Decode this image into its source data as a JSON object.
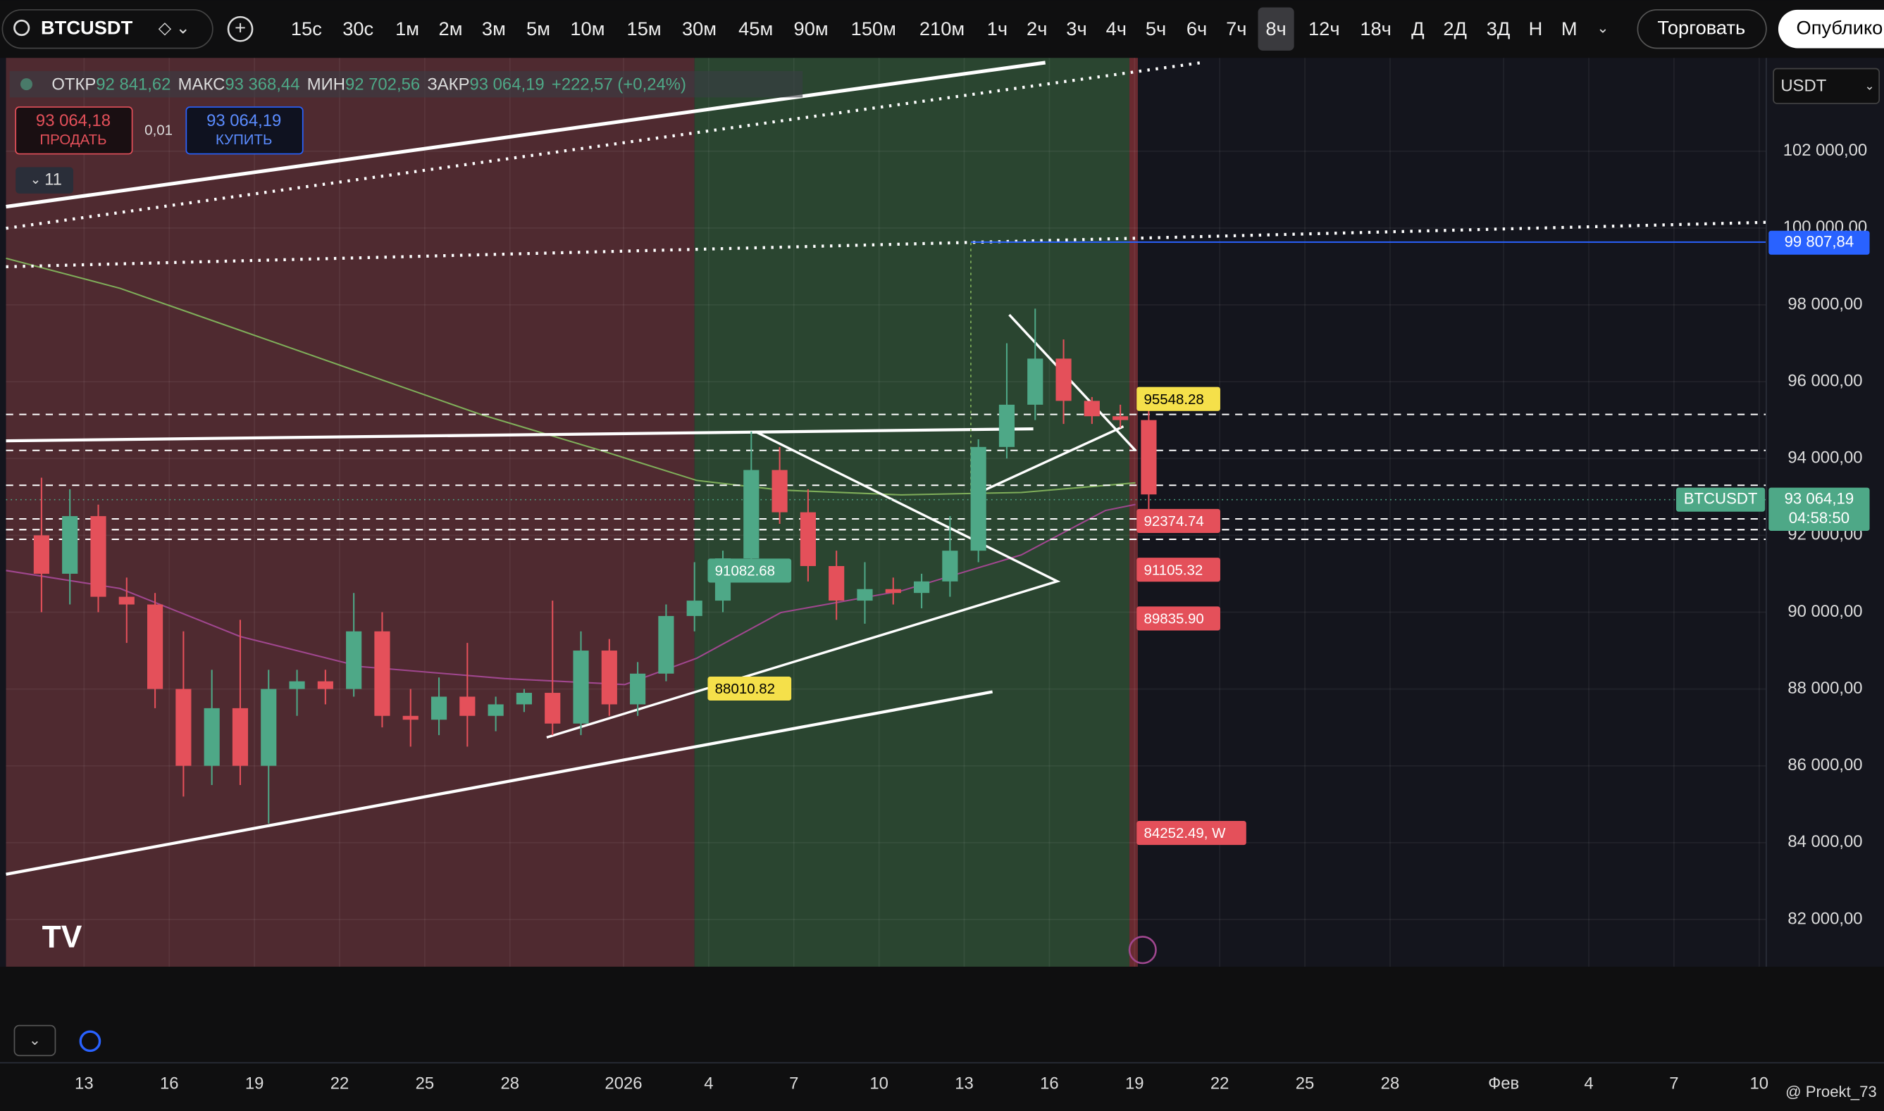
{
  "ui": {
    "symbol": "BTCUSDT",
    "timeframes": [
      "15с",
      "30с",
      "1м",
      "2м",
      "3м",
      "5м",
      "10м",
      "15м",
      "30м",
      "45м",
      "90м",
      "150м",
      "210м",
      "1ч",
      "2ч",
      "3ч",
      "4ч",
      "5ч",
      "6ч",
      "7ч",
      "8ч",
      "12ч",
      "18ч",
      "Д",
      "2Д",
      "3Д",
      "Н",
      "М"
    ],
    "active_timeframe": "8ч",
    "trade_button": "Торговать",
    "publish_button": "Опубликовать",
    "legend": {
      "open_label": "ОТКР",
      "open": "92 841,62",
      "high_label": "МАКС",
      "high": "93 368,44",
      "low_label": "МИН",
      "low": "92 702,56",
      "close_label": "ЗАКР",
      "close": "93 064,19",
      "change": "+222,57 (+0,24%)"
    },
    "sell_price": "93 064,18",
    "sell_label": "ПРОДАТЬ",
    "spread": "0,01",
    "buy_price": "93 064,19",
    "buy_label": "КУПИТЬ",
    "indicators_count": "11",
    "currency": "USDT",
    "price_tag_symbol": "BTCUSDT",
    "price_tag": "93 064,19",
    "countdown": "04:58:50",
    "alert_tag": "99 807,84",
    "watermark": "@ Proekt_73"
  },
  "chart_data": {
    "type": "candlestick",
    "x": [
      "2025-12-11",
      "2025-12-12",
      "2025-12-13",
      "2025-12-14",
      "2025-12-15",
      "2025-12-16",
      "2025-12-17",
      "2025-12-18",
      "2025-12-19",
      "2025-12-20",
      "2025-12-21",
      "2025-12-22",
      "2025-12-23",
      "2025-12-24",
      "2025-12-25",
      "2025-12-26",
      "2025-12-27",
      "2025-12-28",
      "2025-12-29",
      "2025-12-30",
      "2025-12-31",
      "2026-01-01",
      "2026-01-02",
      "2026-01-03",
      "2026-01-04",
      "2026-01-05",
      "2026-01-06",
      "2026-01-07",
      "2026-01-08",
      "2026-01-09",
      "2026-01-10",
      "2026-01-11",
      "2026-01-12",
      "2026-01-13",
      "2026-01-14",
      "2026-01-15",
      "2026-01-16",
      "2026-01-17",
      "2026-01-18",
      "2026-01-19"
    ],
    "open": [
      92000,
      91000,
      92500,
      90400,
      90200,
      88000,
      86000,
      87500,
      86000,
      88000,
      88200,
      88000,
      89500,
      87300,
      87200,
      87800,
      87300,
      87600,
      87900,
      87100,
      89000,
      87600,
      88400,
      89900,
      90300,
      91400,
      93700,
      92600,
      91200,
      90300,
      90600,
      90500,
      90800,
      91600,
      94300,
      95400,
      96600,
      95500,
      95100,
      95000
    ],
    "high": [
      93500,
      93200,
      92800,
      90900,
      90500,
      89500,
      88500,
      89800,
      88500,
      88500,
      88500,
      90500,
      90000,
      88000,
      88300,
      89200,
      87800,
      88000,
      90300,
      89500,
      89300,
      88700,
      90200,
      91300,
      91600,
      94700,
      94300,
      93200,
      91600,
      91300,
      90900,
      91000,
      92500,
      94500,
      97000,
      97900,
      97100,
      95600,
      95400,
      95500
    ],
    "low": [
      90000,
      90200,
      90000,
      89200,
      87500,
      85200,
      85500,
      85500,
      84500,
      87300,
      87600,
      87800,
      87000,
      86500,
      86800,
      86500,
      86900,
      87400,
      86800,
      86800,
      87300,
      87300,
      88200,
      89500,
      90000,
      91000,
      92300,
      90800,
      89800,
      89700,
      90200,
      90100,
      90400,
      91300,
      94000,
      95000,
      94900,
      94900,
      94800,
      92300
    ],
    "close": [
      91000,
      92500,
      90400,
      90200,
      88000,
      86000,
      87500,
      86000,
      88000,
      88200,
      88000,
      89500,
      87300,
      87200,
      87800,
      87300,
      87600,
      87900,
      87100,
      89000,
      87600,
      88400,
      89900,
      90300,
      91400,
      93700,
      92600,
      91200,
      90300,
      90600,
      90500,
      90800,
      91600,
      94300,
      95400,
      96600,
      95500,
      95100,
      95000,
      93064.19
    ],
    "up_color": "#4ea887",
    "down_color": "#e4505a",
    "xlim": [
      "2025-12-10T06",
      "2026-02-10T06"
    ],
    "xticks": [
      {
        "value": "2025-12-13",
        "label": "13"
      },
      {
        "value": "2025-12-16",
        "label": "16"
      },
      {
        "value": "2025-12-19",
        "label": "19"
      },
      {
        "value": "2025-12-22",
        "label": "22"
      },
      {
        "value": "2025-12-25",
        "label": "25"
      },
      {
        "value": "2025-12-28",
        "label": "28"
      },
      {
        "value": "2026-01-01",
        "label": "2026"
      },
      {
        "value": "2026-01-04",
        "label": "4"
      },
      {
        "value": "2026-01-07",
        "label": "7"
      },
      {
        "value": "2026-01-10",
        "label": "10"
      },
      {
        "value": "2026-01-13",
        "label": "13"
      },
      {
        "value": "2026-01-16",
        "label": "16"
      },
      {
        "value": "2026-01-19",
        "label": "19"
      },
      {
        "value": "2026-01-22",
        "label": "22"
      },
      {
        "value": "2026-01-25",
        "label": "25"
      },
      {
        "value": "2026-01-28",
        "label": "28"
      },
      {
        "value": "2026-02-01",
        "label": "Фев"
      },
      {
        "value": "2026-02-04",
        "label": "4"
      },
      {
        "value": "2026-02-07",
        "label": "7"
      },
      {
        "value": "2026-02-10",
        "label": "10"
      }
    ],
    "ylim": [
      80770,
      104430
    ],
    "yticks": [
      {
        "value": 82000,
        "label": "82 000,00"
      },
      {
        "value": 84000,
        "label": "84 000,00"
      },
      {
        "value": 86000,
        "label": "86 000,00"
      },
      {
        "value": 88000,
        "label": "88 000,00"
      },
      {
        "value": 90000,
        "label": "90 000,00"
      },
      {
        "value": 92000,
        "label": "92 000,00"
      },
      {
        "value": 94000,
        "label": "94 000,00"
      },
      {
        "value": 96000,
        "label": "96 000,00"
      },
      {
        "value": 98000,
        "label": "98 000,00"
      },
      {
        "value": 100000,
        "label": "100 000,00"
      },
      {
        "value": 102000,
        "label": "102 000,00"
      }
    ],
    "grid": true,
    "annotations": [
      {
        "value": 95548.28,
        "color": "#f5e04a",
        "side": "right"
      },
      {
        "value": 92374.74,
        "color": "#e4505a",
        "side": "right"
      },
      {
        "value": 91105.32,
        "color": "#e4505a",
        "side": "right"
      },
      {
        "value": 89835.9,
        "label": "89835.90",
        "color": "#e4505a",
        "side": "right"
      },
      {
        "value": 84252.49,
        "label": "84252.49, W",
        "color": "#e4505a",
        "side": "right"
      },
      {
        "value": 91082.68,
        "color": "#4ea887",
        "side": "left"
      },
      {
        "value": 88010.82,
        "color": "#f5e04a",
        "side": "left"
      }
    ]
  }
}
